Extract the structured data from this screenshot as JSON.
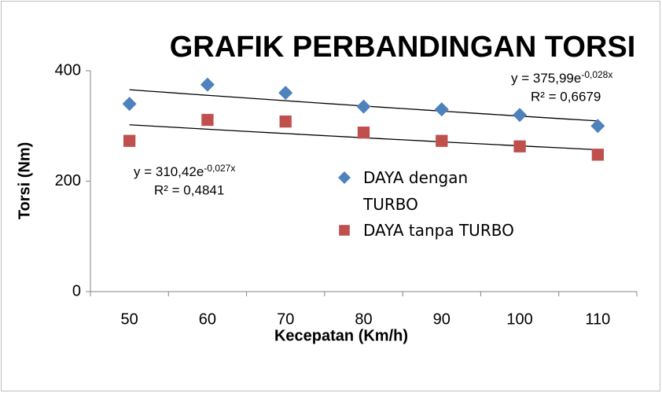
{
  "chart_data": {
    "type": "scatter",
    "title": "GRAFIK PERBANDINGAN TORSI",
    "x_label": "Kecepatan (Km/h)",
    "y_label": "Torsi (Nm)",
    "categories": [
      "50",
      "60",
      "70",
      "80",
      "90",
      "100",
      "110"
    ],
    "series": [
      {
        "name": "DAYA dengan TURBO",
        "color": "#4f81bd",
        "marker": "diamond",
        "values": [
          340,
          375,
          360,
          335,
          330,
          320,
          300
        ],
        "trendline": {
          "a": 375.99,
          "b": -0.028,
          "label": "y = 375,99e",
          "exp_label": "-0,028x",
          "r2_label": "R² = 0,6679"
        }
      },
      {
        "name": "DAYA tanpa TURBO",
        "color": "#c0504d",
        "marker": "square",
        "values": [
          273,
          311,
          308,
          288,
          273,
          263,
          248
        ],
        "trendline": {
          "a": 310.42,
          "b": -0.027,
          "label": "y = 310,42e",
          "exp_label": "-0,027x",
          "r2_label": "R² = 0,4841"
        }
      }
    ],
    "ylim": [
      0,
      400
    ],
    "yticks": [
      0,
      200,
      400
    ],
    "grid": false,
    "legend": "center"
  }
}
